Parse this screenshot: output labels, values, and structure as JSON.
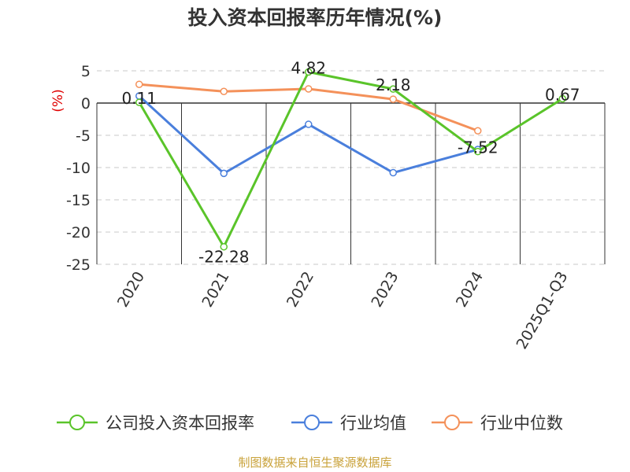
{
  "chart_data": {
    "type": "line",
    "title": "投入资本回报率历年情况(%)",
    "ylabel": "(%)",
    "categories": [
      "2020",
      "2021",
      "2022",
      "2023",
      "2024",
      "2025Q1-Q3"
    ],
    "ylim": [
      -25,
      5
    ],
    "yticks": [
      5,
      0,
      -5,
      -10,
      -15,
      -20,
      -25
    ],
    "series": [
      {
        "name": "公司投入资本回报率",
        "color": "#5ac42a",
        "values": [
          0.11,
          -22.28,
          4.82,
          2.18,
          -7.52,
          0.67
        ],
        "labels": [
          "0.11",
          "-22.28",
          "4.82",
          "2.18",
          "-7.52",
          "0.67"
        ]
      },
      {
        "name": "行业均值",
        "color": "#4a7fdc",
        "values": [
          1.1,
          -10.9,
          -3.3,
          -10.8,
          -7.2,
          null
        ]
      },
      {
        "name": "行业中位数",
        "color": "#f4915a",
        "values": [
          2.9,
          1.8,
          2.2,
          0.6,
          -4.3,
          null
        ]
      }
    ],
    "source": "制图数据来自恒生聚源数据库",
    "source_color": "#c9a23a"
  }
}
